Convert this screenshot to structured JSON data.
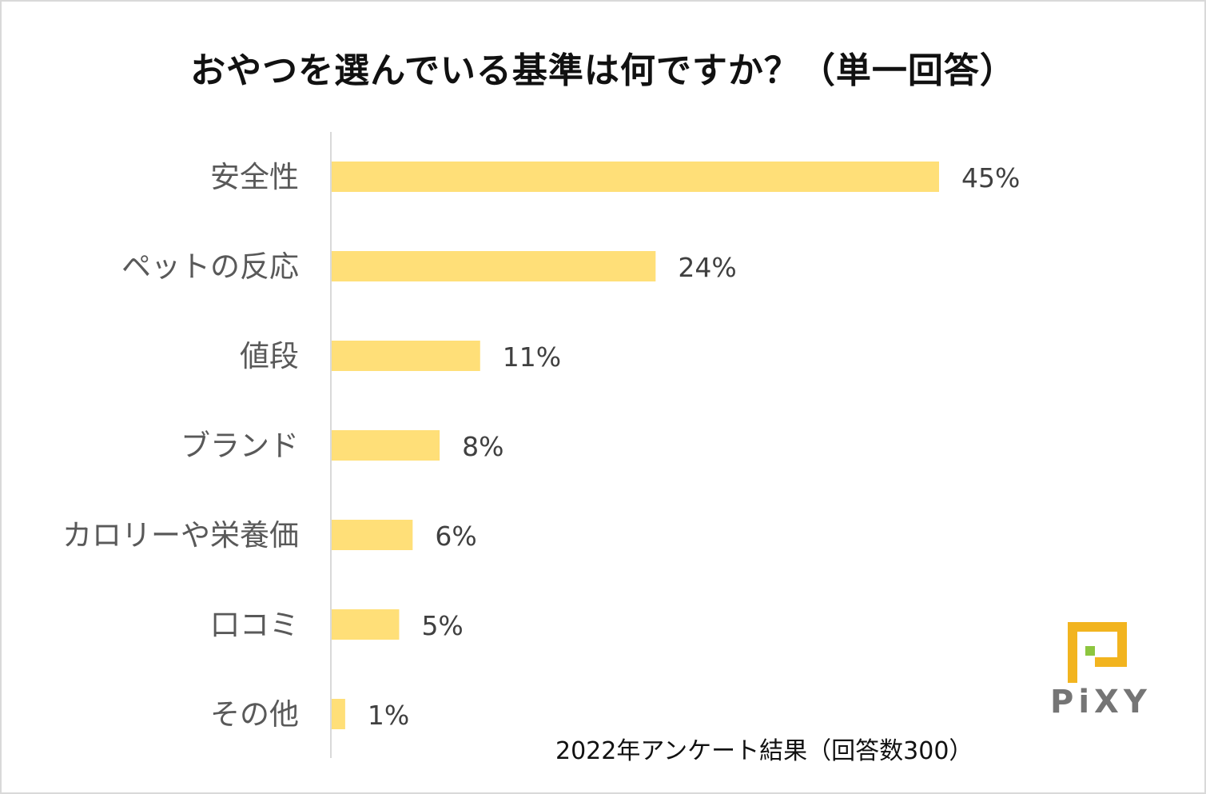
{
  "chart_data": {
    "type": "bar",
    "orientation": "horizontal",
    "title": "おやつを選んでいる基準は何ですか？（単一回答）",
    "categories": [
      "安全性",
      "ペットの反応",
      "値段",
      "ブランド",
      "カロリーや栄養価",
      "口コミ",
      "その他"
    ],
    "values": [
      45,
      24,
      11,
      8,
      6,
      5,
      1
    ],
    "value_labels": [
      "45%",
      "24%",
      "11%",
      "8%",
      "6%",
      "5%",
      "1%"
    ],
    "unit": "%",
    "xlim": [
      0,
      55
    ],
    "grid": false,
    "bar_color": "#FFDF78"
  },
  "footnote": "2022年アンケート結果（回答数300）",
  "logo": {
    "text": "PiXY",
    "colors": {
      "primary": "#F2B41F",
      "accent": "#8DC63F",
      "text": "#757575"
    }
  }
}
